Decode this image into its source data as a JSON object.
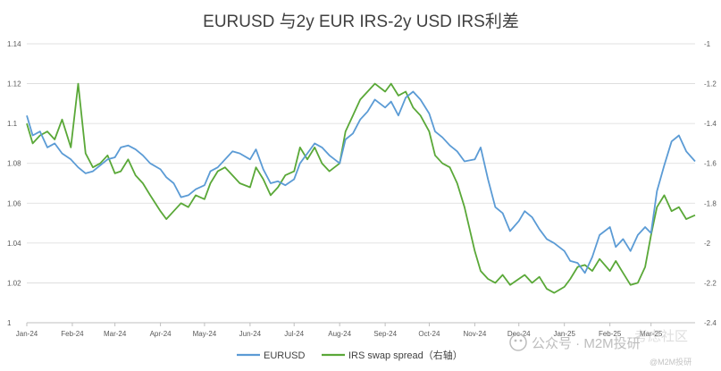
{
  "chart_data": {
    "type": "line",
    "title": "EURUSD 与2y EUR IRS-2y USD IRS利差",
    "x_tick_labels": [
      "Jan-24",
      "Feb-24",
      "Mar-24",
      "Apr-24",
      "May-24",
      "Jun-24",
      "Jul-24",
      "Aug-24",
      "Sep-24",
      "Oct-24",
      "Nov-24",
      "Dec-24",
      "Jan-25",
      "Feb-25",
      "Mar-25"
    ],
    "y_left": {
      "ticks": [
        "1",
        "1.02",
        "1.04",
        "1.06",
        "1.08",
        "1.1",
        "1.12",
        "1.14"
      ],
      "range": [
        1.0,
        1.14
      ]
    },
    "y_right": {
      "ticks": [
        "-1",
        "-1.2",
        "-1.4",
        "-1.6",
        "-1.8",
        "-2",
        "-2.2",
        "-2.4"
      ],
      "range": [
        -2.4,
        -1.0
      ]
    },
    "grid": "horizontal",
    "legend_position": "bottom",
    "series": [
      {
        "name": "EURUSD",
        "color": "#5b9bd5",
        "axis": "left",
        "x": [
          "2024-01-01",
          "2024-01-05",
          "2024-01-10",
          "2024-01-15",
          "2024-01-20",
          "2024-01-25",
          "2024-01-31",
          "2024-02-05",
          "2024-02-10",
          "2024-02-15",
          "2024-02-20",
          "2024-02-25",
          "2024-03-01",
          "2024-03-05",
          "2024-03-10",
          "2024-03-15",
          "2024-03-20",
          "2024-03-25",
          "2024-04-01",
          "2024-04-05",
          "2024-04-10",
          "2024-04-15",
          "2024-04-20",
          "2024-04-25",
          "2024-05-01",
          "2024-05-05",
          "2024-05-10",
          "2024-05-15",
          "2024-05-20",
          "2024-05-25",
          "2024-06-01",
          "2024-06-05",
          "2024-06-10",
          "2024-06-15",
          "2024-06-20",
          "2024-06-25",
          "2024-07-01",
          "2024-07-05",
          "2024-07-10",
          "2024-07-15",
          "2024-07-20",
          "2024-07-25",
          "2024-08-01",
          "2024-08-05",
          "2024-08-10",
          "2024-08-15",
          "2024-08-20",
          "2024-08-25",
          "2024-09-01",
          "2024-09-05",
          "2024-09-10",
          "2024-09-15",
          "2024-09-20",
          "2024-09-25",
          "2024-10-01",
          "2024-10-05",
          "2024-10-10",
          "2024-10-15",
          "2024-10-20",
          "2024-10-25",
          "2024-11-01",
          "2024-11-05",
          "2024-11-10",
          "2024-11-15",
          "2024-11-20",
          "2024-11-25",
          "2024-12-01",
          "2024-12-05",
          "2024-12-10",
          "2024-12-15",
          "2024-12-20",
          "2024-12-25",
          "2025-01-01",
          "2025-01-05",
          "2025-01-10",
          "2025-01-15",
          "2025-01-20",
          "2025-01-25",
          "2025-02-01",
          "2025-02-05",
          "2025-02-10",
          "2025-02-15",
          "2025-02-20",
          "2025-02-25",
          "2025-03-01",
          "2025-03-05",
          "2025-03-10",
          "2025-03-15",
          "2025-03-20",
          "2025-03-25",
          "2025-03-31"
        ],
        "y": [
          1.104,
          1.094,
          1.096,
          1.088,
          1.09,
          1.085,
          1.082,
          1.078,
          1.075,
          1.076,
          1.079,
          1.082,
          1.083,
          1.088,
          1.089,
          1.087,
          1.084,
          1.08,
          1.077,
          1.073,
          1.07,
          1.063,
          1.064,
          1.067,
          1.069,
          1.076,
          1.078,
          1.082,
          1.086,
          1.085,
          1.082,
          1.087,
          1.077,
          1.07,
          1.071,
          1.069,
          1.072,
          1.08,
          1.085,
          1.09,
          1.088,
          1.084,
          1.08,
          1.092,
          1.095,
          1.102,
          1.106,
          1.112,
          1.108,
          1.111,
          1.104,
          1.113,
          1.116,
          1.112,
          1.105,
          1.096,
          1.093,
          1.089,
          1.086,
          1.081,
          1.082,
          1.088,
          1.072,
          1.058,
          1.055,
          1.046,
          1.051,
          1.056,
          1.053,
          1.047,
          1.042,
          1.04,
          1.036,
          1.031,
          1.03,
          1.025,
          1.033,
          1.044,
          1.048,
          1.038,
          1.042,
          1.036,
          1.044,
          1.048,
          1.045,
          1.066,
          1.079,
          1.091,
          1.094,
          1.086,
          1.081
        ]
      },
      {
        "name": "IRS swap spread（右轴）",
        "color": "#5aa838",
        "axis": "right",
        "x": [
          "2024-01-01",
          "2024-01-05",
          "2024-01-10",
          "2024-01-15",
          "2024-01-20",
          "2024-01-25",
          "2024-01-31",
          "2024-02-05",
          "2024-02-10",
          "2024-02-15",
          "2024-02-20",
          "2024-02-25",
          "2024-03-01",
          "2024-03-05",
          "2024-03-10",
          "2024-03-15",
          "2024-03-20",
          "2024-03-25",
          "2024-04-01",
          "2024-04-05",
          "2024-04-10",
          "2024-04-15",
          "2024-04-20",
          "2024-04-25",
          "2024-05-01",
          "2024-05-05",
          "2024-05-10",
          "2024-05-15",
          "2024-05-20",
          "2024-05-25",
          "2024-06-01",
          "2024-06-05",
          "2024-06-10",
          "2024-06-15",
          "2024-06-20",
          "2024-06-25",
          "2024-07-01",
          "2024-07-05",
          "2024-07-10",
          "2024-07-15",
          "2024-07-20",
          "2024-07-25",
          "2024-08-01",
          "2024-08-05",
          "2024-08-10",
          "2024-08-15",
          "2024-08-20",
          "2024-08-25",
          "2024-09-01",
          "2024-09-05",
          "2024-09-10",
          "2024-09-15",
          "2024-09-20",
          "2024-09-25",
          "2024-10-01",
          "2024-10-05",
          "2024-10-10",
          "2024-10-15",
          "2024-10-20",
          "2024-10-25",
          "2024-11-01",
          "2024-11-05",
          "2024-11-10",
          "2024-11-15",
          "2024-11-20",
          "2024-11-25",
          "2024-12-01",
          "2024-12-05",
          "2024-12-10",
          "2024-12-15",
          "2024-12-20",
          "2024-12-25",
          "2025-01-01",
          "2025-01-05",
          "2025-01-10",
          "2025-01-15",
          "2025-01-20",
          "2025-01-25",
          "2025-02-01",
          "2025-02-05",
          "2025-02-10",
          "2025-02-15",
          "2025-02-20",
          "2025-02-25",
          "2025-03-01",
          "2025-03-05",
          "2025-03-10",
          "2025-03-15",
          "2025-03-20",
          "2025-03-25",
          "2025-03-31"
        ],
        "y": [
          -1.4,
          -1.5,
          -1.46,
          -1.44,
          -1.48,
          -1.38,
          -1.52,
          -1.2,
          -1.55,
          -1.62,
          -1.6,
          -1.56,
          -1.65,
          -1.64,
          -1.58,
          -1.66,
          -1.7,
          -1.76,
          -1.84,
          -1.88,
          -1.84,
          -1.8,
          -1.82,
          -1.76,
          -1.78,
          -1.7,
          -1.64,
          -1.62,
          -1.66,
          -1.7,
          -1.72,
          -1.62,
          -1.68,
          -1.76,
          -1.72,
          -1.66,
          -1.64,
          -1.52,
          -1.58,
          -1.52,
          -1.6,
          -1.64,
          -1.6,
          -1.44,
          -1.36,
          -1.28,
          -1.24,
          -1.2,
          -1.24,
          -1.2,
          -1.26,
          -1.24,
          -1.32,
          -1.36,
          -1.44,
          -1.56,
          -1.6,
          -1.62,
          -1.7,
          -1.82,
          -2.04,
          -2.14,
          -2.18,
          -2.2,
          -2.16,
          -2.21,
          -2.18,
          -2.16,
          -2.2,
          -2.17,
          -2.23,
          -2.25,
          -2.22,
          -2.18,
          -2.12,
          -2.11,
          -2.14,
          -2.08,
          -2.14,
          -2.09,
          -2.15,
          -2.21,
          -2.2,
          -2.12,
          -1.96,
          -1.82,
          -1.76,
          -1.84,
          -1.82,
          -1.88,
          -1.86
        ]
      }
    ]
  },
  "watermark": {
    "main": "公众号 · M2M投研",
    "corner": "@M2M投研",
    "faint": "考虑社区"
  }
}
